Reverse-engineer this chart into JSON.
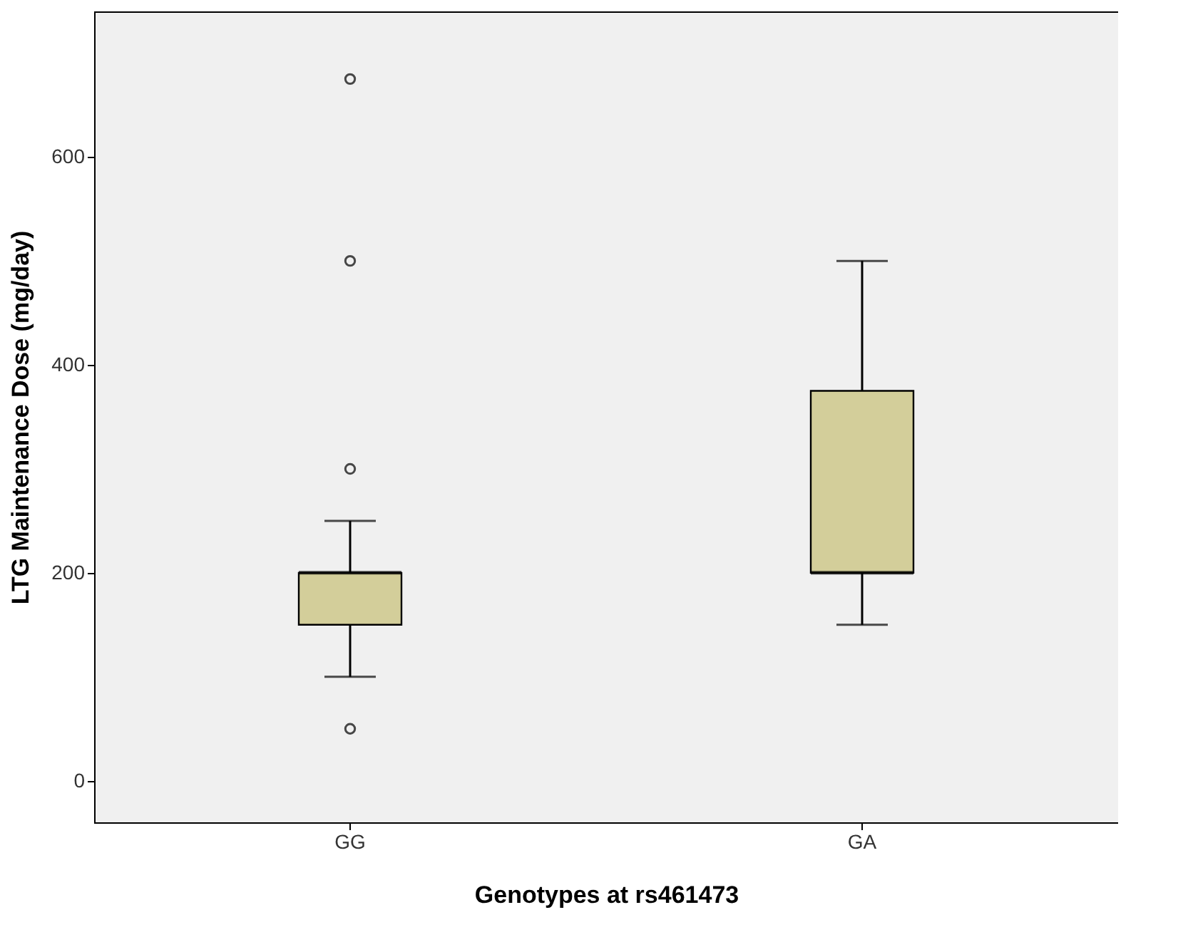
{
  "chart_data": {
    "type": "box",
    "xlabel": "Genotypes at rs461473",
    "ylabel": "LTG Maintenance Dose (mg/day)",
    "categories": [
      "GG",
      "GA"
    ],
    "ylim": [
      -40,
      740
    ],
    "yticks": [
      0,
      200,
      400,
      600
    ],
    "grid": false,
    "series": [
      {
        "color": "#d3ce9a",
        "boxes": [
          {
            "low": 100,
            "q1": 150,
            "median": 200,
            "q3": 200,
            "high": 250,
            "outliers": [
              50,
              300,
              500,
              675
            ]
          },
          {
            "low": 150,
            "q1": 200,
            "median": 200,
            "q3": 375,
            "high": 500
          }
        ]
      }
    ]
  }
}
